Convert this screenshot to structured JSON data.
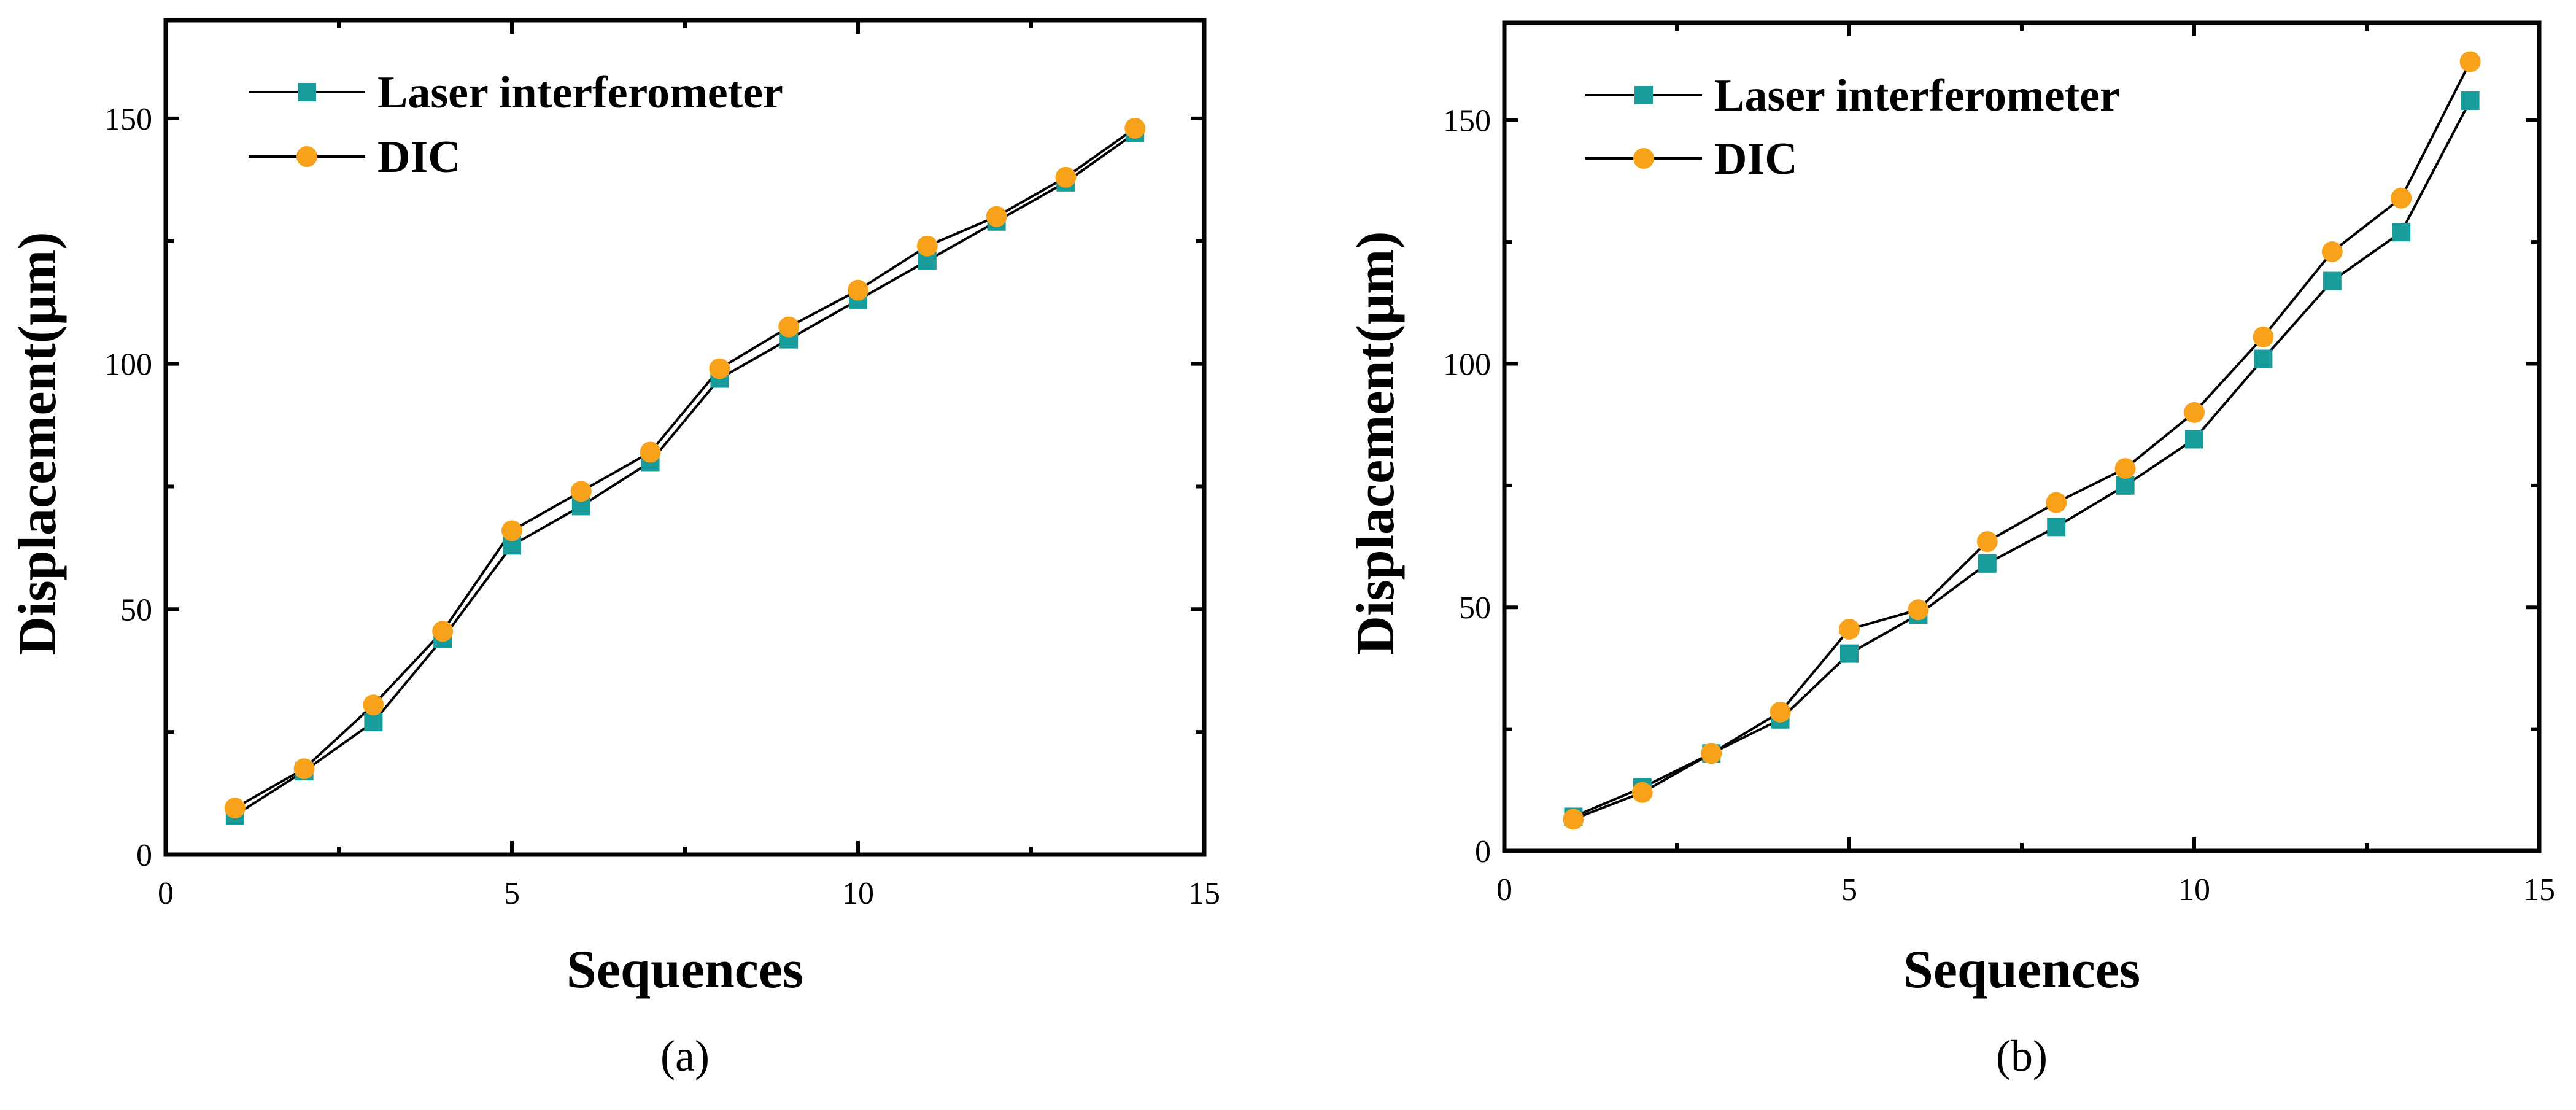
{
  "chart_data": [
    {
      "type": "line",
      "panel_label": "(a)",
      "xlabel": "Sequences",
      "ylabel": "Displacement(μm)",
      "xlim": [
        0,
        15
      ],
      "ylim": [
        0,
        170
      ],
      "xticks": [
        0,
        5,
        10,
        15
      ],
      "yticks": [
        0,
        50,
        100,
        150
      ],
      "grid": false,
      "legend_position": "top-left",
      "x": [
        1,
        2,
        3,
        4,
        5,
        6,
        7,
        8,
        9,
        10,
        11,
        12,
        13,
        14
      ],
      "series": [
        {
          "name": "Laser interferometer",
          "marker": "square",
          "color": "#179b9b",
          "values": [
            8,
            17,
            27,
            44,
            63,
            71,
            80,
            97,
            105,
            113,
            121,
            129,
            137,
            147
          ]
        },
        {
          "name": "DIC",
          "marker": "circle",
          "color": "#f8a21c",
          "values": [
            9.5,
            17.5,
            30.5,
            45.5,
            66,
            74,
            82,
            99,
            107.5,
            115,
            124,
            130,
            138,
            148
          ]
        }
      ]
    },
    {
      "type": "line",
      "panel_label": "(b)",
      "xlabel": "Sequences",
      "ylabel": "Displacement(μm)",
      "xlim": [
        0,
        15
      ],
      "ylim": [
        0,
        170
      ],
      "xticks": [
        0,
        5,
        10,
        15
      ],
      "yticks": [
        0,
        50,
        100,
        150
      ],
      "grid": false,
      "legend_position": "top-left",
      "x": [
        1,
        2,
        3,
        4,
        5,
        6,
        7,
        8,
        9,
        10,
        11,
        12,
        13,
        14
      ],
      "series": [
        {
          "name": "Laser interferometer",
          "marker": "square",
          "color": "#179b9b",
          "values": [
            7,
            13,
            20,
            27,
            40.5,
            48.5,
            59,
            66.5,
            75,
            84.5,
            101,
            117,
            127,
            154
          ]
        },
        {
          "name": "DIC",
          "marker": "circle",
          "color": "#f8a21c",
          "values": [
            6.5,
            12,
            20,
            28.5,
            45.5,
            49.5,
            63.5,
            71.5,
            78.5,
            90,
            105.5,
            123,
            134,
            162
          ]
        }
      ]
    }
  ]
}
